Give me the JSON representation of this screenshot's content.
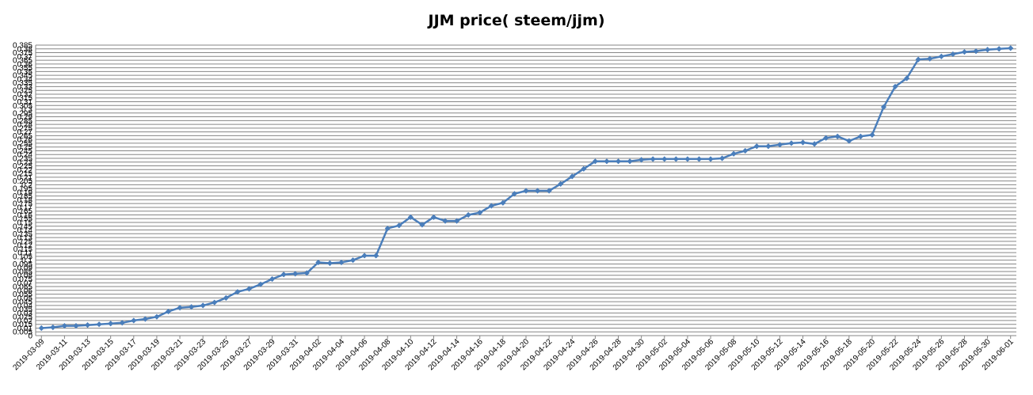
{
  "chart_data": {
    "type": "line",
    "title": "JJM price( steem/jjm)",
    "xlabel": "",
    "ylabel": "",
    "ylim": [
      0,
      0.385
    ],
    "grid": true,
    "legend": "none",
    "x_tick_labels": [
      "2019-03-09",
      "2019-03-11",
      "2019-03-13",
      "2019-03-15",
      "2019-03-17",
      "2019-03-19",
      "2019-03-21",
      "2019-03-23",
      "2019-03-25",
      "2019-03-27",
      "2019-03-29",
      "2019-03-31",
      "2019-04-02",
      "2019-04-04",
      "2019-04-06",
      "2019-04-08",
      "2019-04-10",
      "2019-04-12",
      "2019-04-14",
      "2019-04-16",
      "2019-04-18",
      "2019-04-20",
      "2019-04-22",
      "2019-04-24",
      "2019-04-26",
      "2019-04-28",
      "2019-04-30",
      "2019-05-02",
      "2019-05-04",
      "2019-05-06",
      "2019-05-08",
      "2019-05-10",
      "2019-05-12",
      "2019-05-14",
      "2019-05-16",
      "2019-05-18",
      "2019-05-20",
      "2019-05-22",
      "2019-05-24",
      "2019-05-26",
      "2019-05-28",
      "2019-05-30",
      "2019-06-01"
    ],
    "y_tick_labels": [
      "0",
      "0.005",
      "0.01",
      "0.015",
      "0.02",
      "0.025",
      "0.03",
      "0.035",
      "0.04",
      "0.045",
      "0.05",
      "0.055",
      "0.06",
      "0.065",
      "0.07",
      "0.075",
      "0.08",
      "0.085",
      "0.09",
      "0.095",
      "0.1",
      "0.105",
      "0.11",
      "0.115",
      "0.12",
      "0.125",
      "0.13",
      "0.135",
      "0.14",
      "0.145",
      "0.15",
      "0.155",
      "0.16",
      "0.165",
      "0.17",
      "0.175",
      "0.18",
      "0.185",
      "0.19",
      "0.195",
      "0.2",
      "0.205",
      "0.21",
      "0.215",
      "0.22",
      "0.225",
      "0.23",
      "0.235",
      "0.24",
      "0.245",
      "0.25",
      "0.255",
      "0.26",
      "0.265",
      "0.27",
      "0.275",
      "0.28",
      "0.285",
      "0.29",
      "0.295",
      "0.3",
      "0.305",
      "0.31",
      "0.315",
      "0.32",
      "0.325",
      "0.33",
      "0.335",
      "0.34",
      "0.345",
      "0.35",
      "0.355",
      "0.36",
      "0.365",
      "0.37",
      "0.375",
      "0.38",
      "0.385"
    ],
    "x": [
      "2019-03-09",
      "2019-03-10",
      "2019-03-11",
      "2019-03-12",
      "2019-03-13",
      "2019-03-14",
      "2019-03-15",
      "2019-03-16",
      "2019-03-17",
      "2019-03-18",
      "2019-03-19",
      "2019-03-20",
      "2019-03-21",
      "2019-03-22",
      "2019-03-23",
      "2019-03-24",
      "2019-03-25",
      "2019-03-26",
      "2019-03-27",
      "2019-03-28",
      "2019-03-29",
      "2019-03-30",
      "2019-03-31",
      "2019-04-01",
      "2019-04-02",
      "2019-04-03",
      "2019-04-04",
      "2019-04-05",
      "2019-04-06",
      "2019-04-07",
      "2019-04-08",
      "2019-04-09",
      "2019-04-10",
      "2019-04-11",
      "2019-04-12",
      "2019-04-13",
      "2019-04-14",
      "2019-04-15",
      "2019-04-16",
      "2019-04-17",
      "2019-04-18",
      "2019-04-19",
      "2019-04-20",
      "2019-04-21",
      "2019-04-22",
      "2019-04-23",
      "2019-04-24",
      "2019-04-25",
      "2019-04-26",
      "2019-04-27",
      "2019-04-28",
      "2019-04-29",
      "2019-04-30",
      "2019-05-01",
      "2019-05-02",
      "2019-05-03",
      "2019-05-04",
      "2019-05-05",
      "2019-05-06",
      "2019-05-07",
      "2019-05-08",
      "2019-05-09",
      "2019-05-10",
      "2019-05-11",
      "2019-05-12",
      "2019-05-13",
      "2019-05-14",
      "2019-05-15",
      "2019-05-16",
      "2019-05-17",
      "2019-05-18",
      "2019-05-19",
      "2019-05-20",
      "2019-05-21",
      "2019-05-22",
      "2019-05-23",
      "2019-05-24",
      "2019-05-25",
      "2019-05-26",
      "2019-05-27",
      "2019-05-28",
      "2019-05-29",
      "2019-05-30",
      "2019-05-31",
      "2019-06-01"
    ],
    "series": [
      {
        "values": [
          0.01,
          0.011,
          0.013,
          0.013,
          0.014,
          0.015,
          0.016,
          0.017,
          0.02,
          0.022,
          0.025,
          0.032,
          0.037,
          0.038,
          0.04,
          0.044,
          0.05,
          0.058,
          0.062,
          0.068,
          0.075,
          0.081,
          0.082,
          0.083,
          0.097,
          0.096,
          0.097,
          0.1,
          0.106,
          0.106,
          0.142,
          0.146,
          0.157,
          0.147,
          0.157,
          0.152,
          0.152,
          0.16,
          0.163,
          0.172,
          0.176,
          0.188,
          0.192,
          0.192,
          0.192,
          0.201,
          0.211,
          0.221,
          0.231,
          0.231,
          0.231,
          0.231,
          0.233,
          0.234,
          0.234,
          0.234,
          0.234,
          0.234,
          0.234,
          0.235,
          0.241,
          0.245,
          0.251,
          0.251,
          0.253,
          0.255,
          0.256,
          0.254,
          0.262,
          0.264,
          0.258,
          0.264,
          0.266,
          0.303,
          0.33,
          0.341,
          0.366,
          0.367,
          0.37,
          0.373,
          0.376,
          0.377,
          0.379,
          0.38,
          0.381
        ]
      }
    ],
    "line_color": "#4a7ebb"
  }
}
